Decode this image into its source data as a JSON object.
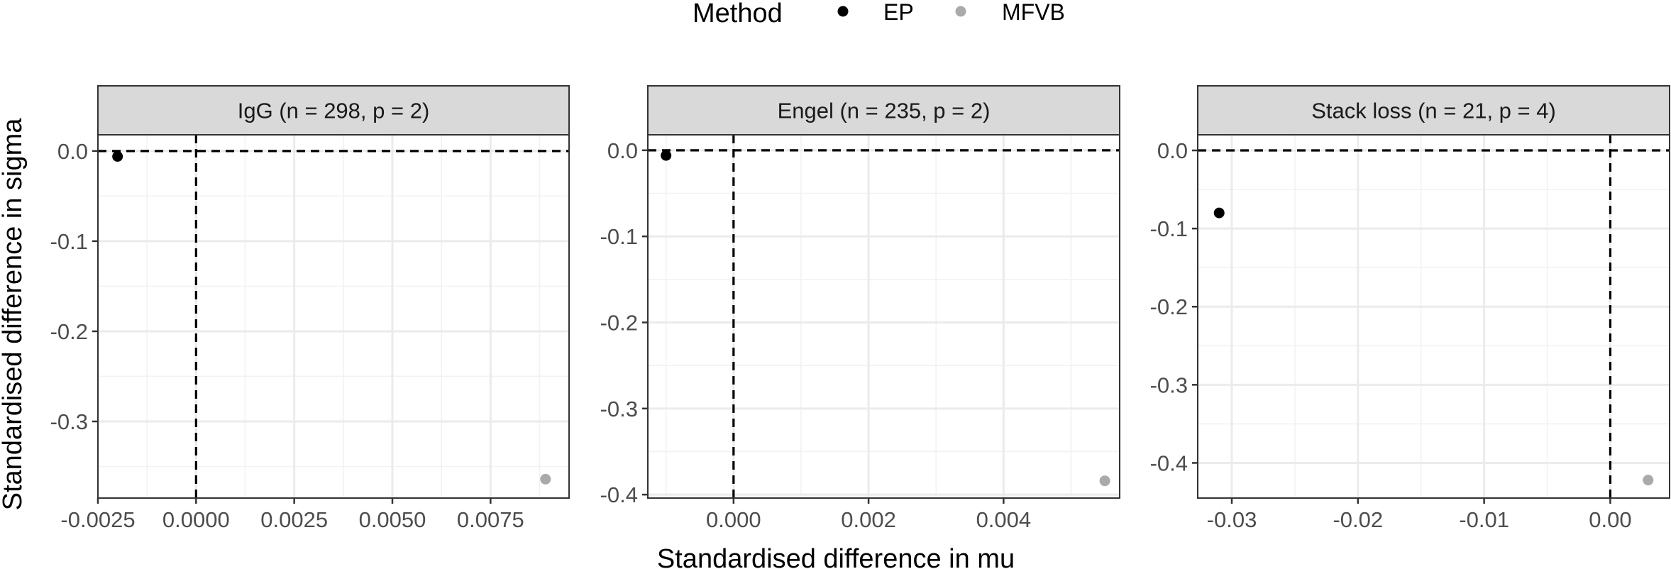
{
  "legend": {
    "title": "Method",
    "items": [
      {
        "label": "EP",
        "color": "#000000"
      },
      {
        "label": "MFVB",
        "color": "#aaaaaa"
      }
    ]
  },
  "axes": {
    "xlabel": "Standardised difference in mu",
    "ylabel": "Standardised difference in sigma"
  },
  "chart_data": [
    {
      "type": "scatter",
      "title": "IgG (n = 298, p = 2)",
      "xlim": [
        -0.0025,
        0.0095
      ],
      "ylim": [
        -0.385,
        0.018
      ],
      "x_ticks": [
        {
          "v": -0.0025,
          "label": "-0.0025"
        },
        {
          "v": 0,
          "label": "0.0000"
        },
        {
          "v": 0.0025,
          "label": "0.0025"
        },
        {
          "v": 0.005,
          "label": "0.0050"
        },
        {
          "v": 0.0075,
          "label": "0.0075"
        }
      ],
      "y_ticks": [
        {
          "v": 0,
          "label": "0.0"
        },
        {
          "v": -0.1,
          "label": "-0.1"
        },
        {
          "v": -0.2,
          "label": "-0.2"
        },
        {
          "v": -0.3,
          "label": "-0.3"
        }
      ],
      "reference_lines": {
        "x": 0,
        "y": 0
      },
      "grid": true,
      "series": [
        {
          "name": "EP",
          "color": "#000000",
          "points": [
            {
              "x": -0.002,
              "y": -0.006
            }
          ]
        },
        {
          "name": "MFVB",
          "color": "#aaaaaa",
          "points": [
            {
              "x": 0.0089,
              "y": -0.364
            }
          ]
        }
      ]
    },
    {
      "type": "scatter",
      "title": "Engel (n = 235, p = 2)",
      "xlim": [
        -0.00127,
        0.00572
      ],
      "ylim": [
        -0.404,
        0.018
      ],
      "x_ticks": [
        {
          "v": 0,
          "label": "0.000"
        },
        {
          "v": 0.002,
          "label": "0.002"
        },
        {
          "v": 0.004,
          "label": "0.004"
        }
      ],
      "y_ticks": [
        {
          "v": 0,
          "label": "0.0"
        },
        {
          "v": -0.1,
          "label": "-0.1"
        },
        {
          "v": -0.2,
          "label": "-0.2"
        },
        {
          "v": -0.3,
          "label": "-0.3"
        },
        {
          "v": -0.4,
          "label": "-0.4"
        }
      ],
      "reference_lines": {
        "x": 0,
        "y": 0
      },
      "grid": true,
      "series": [
        {
          "name": "EP",
          "color": "#000000",
          "points": [
            {
              "x": -0.001,
              "y": -0.006
            }
          ]
        },
        {
          "name": "MFVB",
          "color": "#aaaaaa",
          "points": [
            {
              "x": 0.0055,
              "y": -0.384
            }
          ]
        }
      ]
    },
    {
      "type": "scatter",
      "title": "Stack loss (n = 21, p = 4)",
      "xlim": [
        -0.0327,
        0.0047
      ],
      "ylim": [
        -0.445,
        0.02
      ],
      "x_ticks": [
        {
          "v": -0.03,
          "label": "-0.03"
        },
        {
          "v": -0.02,
          "label": "-0.02"
        },
        {
          "v": -0.01,
          "label": "-0.01"
        },
        {
          "v": 0,
          "label": "0.00"
        }
      ],
      "y_ticks": [
        {
          "v": 0,
          "label": "0.0"
        },
        {
          "v": -0.1,
          "label": "-0.1"
        },
        {
          "v": -0.2,
          "label": "-0.2"
        },
        {
          "v": -0.3,
          "label": "-0.3"
        },
        {
          "v": -0.4,
          "label": "-0.4"
        }
      ],
      "reference_lines": {
        "x": 0,
        "y": 0
      },
      "grid": true,
      "series": [
        {
          "name": "EP",
          "color": "#000000",
          "points": [
            {
              "x": -0.031,
              "y": -0.08
            }
          ]
        },
        {
          "name": "MFVB",
          "color": "#aaaaaa",
          "points": [
            {
              "x": 0.003,
              "y": -0.422
            }
          ]
        }
      ]
    }
  ]
}
